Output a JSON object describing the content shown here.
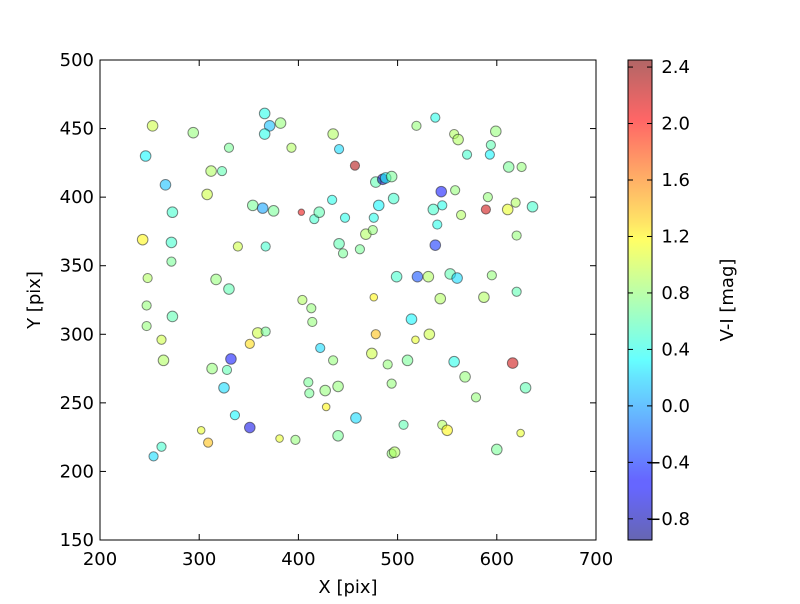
{
  "chart_data": {
    "type": "scatter",
    "xlabel": "X [pix]",
    "ylabel": "Y [pix]",
    "xlim": [
      200,
      700
    ],
    "ylim": [
      150,
      500
    ],
    "xticks": [
      200,
      300,
      400,
      500,
      600,
      700
    ],
    "yticks": [
      150,
      200,
      250,
      300,
      350,
      400,
      450,
      500
    ],
    "grid": false,
    "colorbar": {
      "label": "V-I [mag]",
      "range": [
        -0.95,
        2.45
      ],
      "ticks": [
        -0.8,
        -0.4,
        0.0,
        0.4,
        0.8,
        1.2,
        1.6,
        2.0,
        2.4
      ],
      "tick_labels": [
        "−0.8",
        "−0.4",
        "0.0",
        "0.4",
        "0.8",
        "1.2",
        "1.6",
        "2.0",
        "2.4"
      ],
      "colormap": "jet"
    },
    "points": [
      {
        "x": 246,
        "y": 430,
        "c": 0.3,
        "s": "m"
      },
      {
        "x": 253,
        "y": 452,
        "c": 1.0,
        "s": "m"
      },
      {
        "x": 266,
        "y": 409,
        "c": 0.1,
        "s": "m"
      },
      {
        "x": 273,
        "y": 389,
        "c": 0.5,
        "s": "m"
      },
      {
        "x": 272,
        "y": 367,
        "c": 0.5,
        "s": "m"
      },
      {
        "x": 272,
        "y": 353,
        "c": 0.7,
        "s": "s"
      },
      {
        "x": 243,
        "y": 369,
        "c": 1.2,
        "s": "m"
      },
      {
        "x": 248,
        "y": 341,
        "c": 0.9,
        "s": "s"
      },
      {
        "x": 247,
        "y": 321,
        "c": 0.8,
        "s": "s"
      },
      {
        "x": 247,
        "y": 306,
        "c": 0.8,
        "s": "s"
      },
      {
        "x": 262,
        "y": 296,
        "c": 1.0,
        "s": "s"
      },
      {
        "x": 264,
        "y": 281,
        "c": 0.9,
        "s": "m"
      },
      {
        "x": 273,
        "y": 313,
        "c": 0.6,
        "s": "m"
      },
      {
        "x": 262,
        "y": 218,
        "c": 0.5,
        "s": "s"
      },
      {
        "x": 254,
        "y": 211,
        "c": 0.2,
        "s": "s"
      },
      {
        "x": 294,
        "y": 447,
        "c": 0.8,
        "s": "m"
      },
      {
        "x": 312,
        "y": 419,
        "c": 0.9,
        "s": "m"
      },
      {
        "x": 323,
        "y": 419,
        "c": 0.6,
        "s": "s"
      },
      {
        "x": 330,
        "y": 436,
        "c": 0.7,
        "s": "s"
      },
      {
        "x": 308,
        "y": 402,
        "c": 1.0,
        "s": "m"
      },
      {
        "x": 317,
        "y": 340,
        "c": 0.8,
        "s": "m"
      },
      {
        "x": 330,
        "y": 333,
        "c": 0.6,
        "s": "m"
      },
      {
        "x": 339,
        "y": 364,
        "c": 1.0,
        "s": "s"
      },
      {
        "x": 313,
        "y": 275,
        "c": 0.8,
        "s": "m"
      },
      {
        "x": 328,
        "y": 274,
        "c": 0.6,
        "s": "s"
      },
      {
        "x": 332,
        "y": 282,
        "c": -0.5,
        "s": "m"
      },
      {
        "x": 325,
        "y": 261,
        "c": 0.2,
        "s": "m"
      },
      {
        "x": 336,
        "y": 241,
        "c": 0.3,
        "s": "s"
      },
      {
        "x": 302,
        "y": 230,
        "c": 1.1,
        "s": "t"
      },
      {
        "x": 309,
        "y": 221,
        "c": 1.4,
        "s": "s"
      },
      {
        "x": 351,
        "y": 232,
        "c": -0.6,
        "s": "m"
      },
      {
        "x": 366,
        "y": 461,
        "c": 0.4,
        "s": "m"
      },
      {
        "x": 371,
        "y": 452,
        "c": 0.1,
        "s": "m"
      },
      {
        "x": 382,
        "y": 454,
        "c": 0.8,
        "s": "m"
      },
      {
        "x": 366,
        "y": 446,
        "c": 0.4,
        "s": "m"
      },
      {
        "x": 354,
        "y": 394,
        "c": 0.7,
        "s": "m"
      },
      {
        "x": 364,
        "y": 392,
        "c": 0.0,
        "s": "m"
      },
      {
        "x": 375,
        "y": 390,
        "c": 0.7,
        "s": "m"
      },
      {
        "x": 367,
        "y": 364,
        "c": 0.5,
        "s": "s"
      },
      {
        "x": 359,
        "y": 301,
        "c": 1.0,
        "s": "m"
      },
      {
        "x": 367,
        "y": 302,
        "c": 0.7,
        "s": "s"
      },
      {
        "x": 351,
        "y": 293,
        "c": 1.3,
        "s": "s"
      },
      {
        "x": 393,
        "y": 436,
        "c": 0.9,
        "s": "s"
      },
      {
        "x": 381,
        "y": 224,
        "c": 1.1,
        "s": "t"
      },
      {
        "x": 397,
        "y": 223,
        "c": 0.8,
        "s": "s"
      },
      {
        "x": 403,
        "y": 389,
        "c": 2.1,
        "s": "xs"
      },
      {
        "x": 416,
        "y": 384,
        "c": 0.5,
        "s": "s"
      },
      {
        "x": 421,
        "y": 389,
        "c": 0.6,
        "s": "m"
      },
      {
        "x": 404,
        "y": 325,
        "c": 0.9,
        "s": "s"
      },
      {
        "x": 413,
        "y": 319,
        "c": 0.8,
        "s": "s"
      },
      {
        "x": 414,
        "y": 309,
        "c": 0.8,
        "s": "s"
      },
      {
        "x": 422,
        "y": 290,
        "c": 0.2,
        "s": "s"
      },
      {
        "x": 410,
        "y": 265,
        "c": 0.7,
        "s": "s"
      },
      {
        "x": 411,
        "y": 257,
        "c": 0.7,
        "s": "s"
      },
      {
        "x": 427,
        "y": 259,
        "c": 0.8,
        "s": "m"
      },
      {
        "x": 428,
        "y": 247,
        "c": 1.2,
        "s": "t"
      },
      {
        "x": 435,
        "y": 446,
        "c": 0.9,
        "s": "m"
      },
      {
        "x": 441,
        "y": 435,
        "c": 0.2,
        "s": "s"
      },
      {
        "x": 457,
        "y": 423,
        "c": 2.3,
        "s": "s"
      },
      {
        "x": 434,
        "y": 398,
        "c": 0.4,
        "s": "s"
      },
      {
        "x": 447,
        "y": 385,
        "c": 0.4,
        "s": "s"
      },
      {
        "x": 441,
        "y": 366,
        "c": 0.6,
        "s": "m"
      },
      {
        "x": 445,
        "y": 359,
        "c": 0.7,
        "s": "s"
      },
      {
        "x": 462,
        "y": 362,
        "c": 0.7,
        "s": "s"
      },
      {
        "x": 435,
        "y": 281,
        "c": 0.8,
        "s": "s"
      },
      {
        "x": 440,
        "y": 262,
        "c": 0.8,
        "s": "m"
      },
      {
        "x": 458,
        "y": 239,
        "c": 0.2,
        "s": "m"
      },
      {
        "x": 440,
        "y": 226,
        "c": 0.7,
        "s": "m"
      },
      {
        "x": 468,
        "y": 373,
        "c": 0.9,
        "s": "m"
      },
      {
        "x": 475,
        "y": 376,
        "c": 0.8,
        "s": "s"
      },
      {
        "x": 476,
        "y": 385,
        "c": 0.4,
        "s": "s"
      },
      {
        "x": 481,
        "y": 394,
        "c": 0.3,
        "s": "m"
      },
      {
        "x": 478,
        "y": 411,
        "c": 0.6,
        "s": "m"
      },
      {
        "x": 485,
        "y": 413,
        "c": -0.8,
        "s": "m"
      },
      {
        "x": 488,
        "y": 414,
        "c": 0.3,
        "s": "m"
      },
      {
        "x": 494,
        "y": 415,
        "c": 0.7,
        "s": "m"
      },
      {
        "x": 496,
        "y": 399,
        "c": 0.5,
        "s": "m"
      },
      {
        "x": 476,
        "y": 327,
        "c": 1.2,
        "s": "t"
      },
      {
        "x": 478,
        "y": 300,
        "c": 1.4,
        "s": "s"
      },
      {
        "x": 474,
        "y": 286,
        "c": 1.0,
        "s": "m"
      },
      {
        "x": 490,
        "y": 278,
        "c": 0.8,
        "s": "s"
      },
      {
        "x": 494,
        "y": 264,
        "c": 0.8,
        "s": "s"
      },
      {
        "x": 494,
        "y": 213,
        "c": 0.8,
        "s": "s"
      },
      {
        "x": 497,
        "y": 214,
        "c": 0.9,
        "s": "m"
      },
      {
        "x": 499,
        "y": 342,
        "c": 0.5,
        "s": "m"
      },
      {
        "x": 520,
        "y": 342,
        "c": -0.3,
        "s": "m"
      },
      {
        "x": 531,
        "y": 342,
        "c": 0.9,
        "s": "m"
      },
      {
        "x": 519,
        "y": 452,
        "c": 0.8,
        "s": "s"
      },
      {
        "x": 538,
        "y": 458,
        "c": 0.4,
        "s": "s"
      },
      {
        "x": 536,
        "y": 391,
        "c": 0.5,
        "s": "m"
      },
      {
        "x": 540,
        "y": 380,
        "c": 0.4,
        "s": "s"
      },
      {
        "x": 545,
        "y": 394,
        "c": 0.4,
        "s": "s"
      },
      {
        "x": 544,
        "y": 404,
        "c": -0.5,
        "s": "m"
      },
      {
        "x": 538,
        "y": 365,
        "c": -0.4,
        "s": "m"
      },
      {
        "x": 543,
        "y": 326,
        "c": 0.9,
        "s": "m"
      },
      {
        "x": 514,
        "y": 311,
        "c": 0.3,
        "s": "m"
      },
      {
        "x": 518,
        "y": 296,
        "c": 1.1,
        "s": "t"
      },
      {
        "x": 532,
        "y": 300,
        "c": 1.0,
        "s": "m"
      },
      {
        "x": 510,
        "y": 281,
        "c": 0.7,
        "s": "m"
      },
      {
        "x": 506,
        "y": 234,
        "c": 0.6,
        "s": "s"
      },
      {
        "x": 545,
        "y": 234,
        "c": 0.9,
        "s": "s"
      },
      {
        "x": 550,
        "y": 230,
        "c": 1.2,
        "s": "m"
      },
      {
        "x": 557,
        "y": 446,
        "c": 0.9,
        "s": "s"
      },
      {
        "x": 561,
        "y": 442,
        "c": 0.9,
        "s": "m"
      },
      {
        "x": 570,
        "y": 431,
        "c": 0.5,
        "s": "s"
      },
      {
        "x": 558,
        "y": 405,
        "c": 0.8,
        "s": "s"
      },
      {
        "x": 564,
        "y": 387,
        "c": 0.9,
        "s": "s"
      },
      {
        "x": 553,
        "y": 344,
        "c": 0.6,
        "s": "m"
      },
      {
        "x": 560,
        "y": 341,
        "c": 0.2,
        "s": "m"
      },
      {
        "x": 557,
        "y": 280,
        "c": 0.4,
        "s": "m"
      },
      {
        "x": 568,
        "y": 269,
        "c": 0.8,
        "s": "m"
      },
      {
        "x": 579,
        "y": 254,
        "c": 0.8,
        "s": "s"
      },
      {
        "x": 599,
        "y": 448,
        "c": 0.8,
        "s": "m"
      },
      {
        "x": 594,
        "y": 438,
        "c": 0.6,
        "s": "s"
      },
      {
        "x": 593,
        "y": 431,
        "c": 0.3,
        "s": "s"
      },
      {
        "x": 591,
        "y": 400,
        "c": 0.8,
        "s": "s"
      },
      {
        "x": 589,
        "y": 391,
        "c": 2.2,
        "s": "s"
      },
      {
        "x": 595,
        "y": 343,
        "c": 0.8,
        "s": "s"
      },
      {
        "x": 587,
        "y": 327,
        "c": 0.9,
        "s": "m"
      },
      {
        "x": 600,
        "y": 216,
        "c": 0.7,
        "s": "m"
      },
      {
        "x": 612,
        "y": 422,
        "c": 0.7,
        "s": "m"
      },
      {
        "x": 625,
        "y": 422,
        "c": 0.8,
        "s": "s"
      },
      {
        "x": 611,
        "y": 391,
        "c": 1.1,
        "s": "m"
      },
      {
        "x": 619,
        "y": 396,
        "c": 0.9,
        "s": "s"
      },
      {
        "x": 636,
        "y": 393,
        "c": 0.5,
        "s": "m"
      },
      {
        "x": 620,
        "y": 372,
        "c": 0.8,
        "s": "s"
      },
      {
        "x": 620,
        "y": 331,
        "c": 0.6,
        "s": "s"
      },
      {
        "x": 616,
        "y": 279,
        "c": 2.2,
        "s": "m"
      },
      {
        "x": 629,
        "y": 261,
        "c": 0.6,
        "s": "m"
      },
      {
        "x": 624,
        "y": 228,
        "c": 1.1,
        "s": "t"
      }
    ]
  }
}
